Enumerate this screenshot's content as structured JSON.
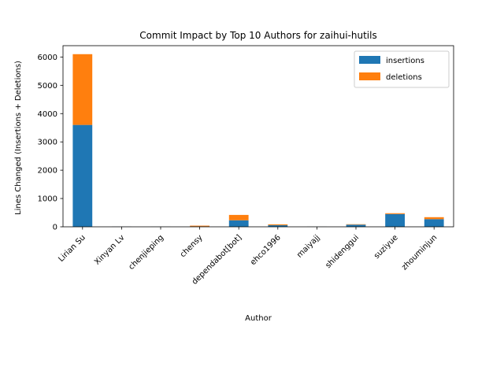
{
  "chart_data": {
    "type": "bar",
    "stacked": true,
    "title": "Commit Impact by Top 10 Authors for zaihui-hutils",
    "xlabel": "Author",
    "ylabel": "Lines Changed (Insertions + Deletions)",
    "categories": [
      "Lirian Su",
      "Xinyan Lv",
      "chenjieping",
      "chensy",
      "dependabot[bot]",
      "ehco1996",
      "maiyajj",
      "shidenggui",
      "suziyue",
      "zhouminjun"
    ],
    "series": [
      {
        "name": "insertions",
        "color": "#1f77b4",
        "values": [
          3600,
          5,
          3,
          15,
          230,
          55,
          3,
          75,
          450,
          270
        ]
      },
      {
        "name": "deletions",
        "color": "#ff7f0e",
        "values": [
          2500,
          2,
          1,
          25,
          190,
          30,
          1,
          15,
          30,
          70
        ]
      }
    ],
    "ylim": [
      0,
      6400
    ],
    "yticks": [
      0,
      1000,
      2000,
      3000,
      4000,
      5000,
      6000
    ],
    "ytick_labels": [
      "0",
      "1000",
      "2000",
      "3000",
      "4000",
      "5000",
      "6000"
    ],
    "legend_position": "upper-right",
    "grid": false
  }
}
